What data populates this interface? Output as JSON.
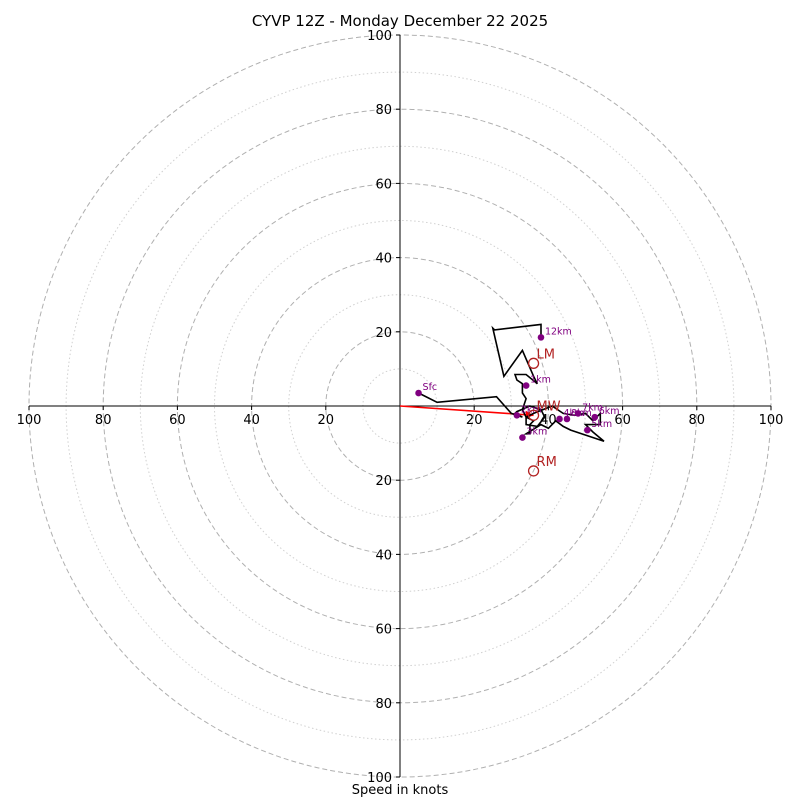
{
  "chart_data": {
    "type": "hodograph",
    "title": "CYVP 12Z - Monday December 22 2025",
    "xlabel": "Speed in knots",
    "axis_range": [
      -100,
      100
    ],
    "ring_major": [
      20,
      40,
      60,
      80,
      100
    ],
    "ring_minor": [
      10,
      30,
      50,
      70,
      90
    ],
    "tick_labels": [
      "100",
      "80",
      "60",
      "40",
      "20"
    ],
    "positive_tick_labels": [
      "20",
      "40",
      "60",
      "80",
      "100"
    ],
    "colors": {
      "ring_major": "#b0b0b0",
      "ring_minor": "#d0d0d0",
      "trace": "#000000",
      "point": "#800080",
      "motion": "#b22222",
      "shear_vector": "#ff0000"
    },
    "trace": [
      [
        5,
        3.5
      ],
      [
        10,
        1
      ],
      [
        26,
        2.5
      ],
      [
        30,
        -2
      ],
      [
        33,
        -3
      ],
      [
        31,
        -2
      ],
      [
        31.5,
        -1.5
      ],
      [
        35,
        0
      ],
      [
        38,
        -1
      ],
      [
        39,
        -3
      ],
      [
        37,
        -5.5
      ],
      [
        34,
        -5
      ],
      [
        34,
        -3
      ],
      [
        36,
        -2
      ],
      [
        41,
        0
      ],
      [
        44,
        -2
      ],
      [
        47,
        -2.5
      ],
      [
        50,
        -2
      ],
      [
        52,
        -4
      ],
      [
        54,
        -2
      ],
      [
        54,
        -5
      ],
      [
        50,
        -5
      ],
      [
        52,
        -7
      ],
      [
        55,
        -9.5
      ],
      [
        46,
        -6.5
      ],
      [
        44,
        -5.5
      ],
      [
        42,
        -4
      ],
      [
        40,
        -6
      ],
      [
        38,
        -5
      ],
      [
        34,
        -7.5
      ],
      [
        35,
        -7.5
      ],
      [
        35,
        -5
      ],
      [
        36,
        -4
      ],
      [
        34,
        -3
      ],
      [
        33,
        -1
      ],
      [
        34,
        2
      ],
      [
        33,
        3.5
      ],
      [
        33,
        6
      ],
      [
        31.5,
        7
      ],
      [
        31,
        8.5
      ],
      [
        34,
        8.5
      ],
      [
        37,
        6
      ],
      [
        36,
        8
      ],
      [
        33,
        15
      ],
      [
        28,
        8
      ],
      [
        25,
        21
      ],
      [
        25.5,
        20.5
      ],
      [
        38,
        22
      ],
      [
        38,
        18.5
      ]
    ],
    "levels": [
      {
        "label": "Sfc",
        "u": 5,
        "v": 3.5
      },
      {
        "label": "1km",
        "u": 34,
        "v": 5.5
      },
      {
        "label": "2km",
        "u": 31.5,
        "v": -2.5
      },
      {
        "label": "3km",
        "u": 33,
        "v": -8.5
      },
      {
        "label": "4km",
        "u": 43,
        "v": -3.5
      },
      {
        "label": "5km",
        "u": 50.5,
        "v": -6.5
      },
      {
        "label": "6km",
        "u": 52.5,
        "v": -3
      },
      {
        "label": "8km",
        "u": 45,
        "v": -3.5
      },
      {
        "label": "7km",
        "u": 48,
        "v": -2
      },
      {
        "label": "12km",
        "u": 38,
        "v": 18.5
      }
    ],
    "storm_motion": [
      {
        "label": "LM",
        "u": 36,
        "v": 11.5
      },
      {
        "label": "MW",
        "u": 36,
        "v": -2.5
      },
      {
        "label": "RM",
        "u": 36,
        "v": -17.5
      }
    ],
    "shear_vector": {
      "from": [
        0,
        0
      ],
      "to": [
        36,
        -2.5
      ]
    }
  }
}
